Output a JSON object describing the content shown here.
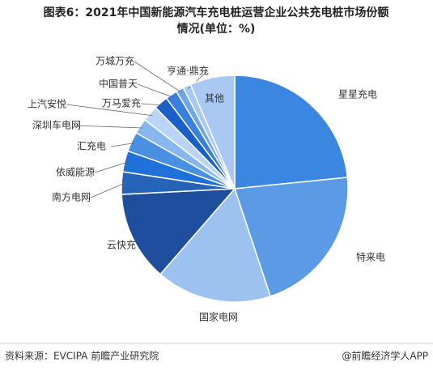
{
  "chart_data": {
    "type": "pie",
    "title": [
      "图表6：2021年中国新能源汽车充电桩运营企业公共充电桩市场份额",
      "情况(单位：%)"
    ],
    "categories": [
      "星星充电",
      "特来电",
      "国家电网",
      "云快充",
      "南方电网",
      "依威能源",
      "汇充电",
      "深圳车电网",
      "上汽安悦",
      "万马爱充",
      "中国普天",
      "万城万充",
      "亨通·鼎充",
      "其他"
    ],
    "values": [
      23.4,
      21.5,
      16.5,
      12.8,
      3.2,
      3.0,
      2.8,
      2.2,
      2.3,
      2.0,
      1.7,
      1.1,
      1.1,
      6.4
    ],
    "colors": [
      "#3a86e0",
      "#5b9be6",
      "#9cc3f0",
      "#1f4f9c",
      "#2563b8",
      "#1f70d8",
      "#4a90e2",
      "#88b6ef",
      "#b9d4f5",
      "#1a5fc8",
      "#3b7fdc",
      "#6fa5ea",
      "#a6c8f2",
      "#a9c9f3"
    ],
    "source": "资料来源：EVCIPA 前瞻产业研究院",
    "credit": "@前瞻经济学人APP"
  }
}
